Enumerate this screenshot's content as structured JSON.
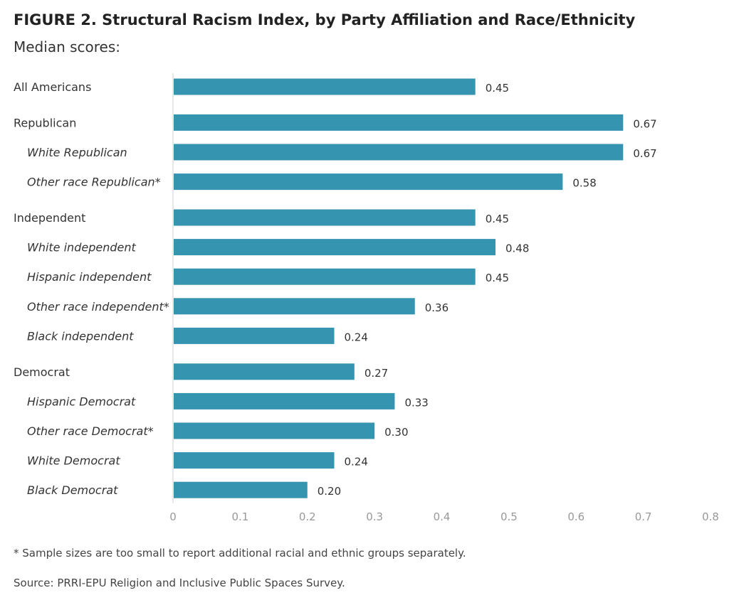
{
  "chart_data": {
    "type": "bar",
    "orientation": "horizontal",
    "title": "FIGURE 2. Structural Racism Index, by Party Affiliation and Race/Ethnicity",
    "subtitle": "Median scores:",
    "categories": [
      "All Americans",
      "Republican",
      "White Republican",
      "Other race Republican*",
      "Independent",
      "White independent",
      "Hispanic independent",
      "Other race independent*",
      "Black independent",
      "Democrat",
      "Hispanic Democrat",
      "Other race Democrat*",
      "White Democrat",
      "Black Democrat"
    ],
    "values": [
      0.45,
      0.67,
      0.67,
      0.58,
      0.45,
      0.48,
      0.45,
      0.36,
      0.24,
      0.27,
      0.33,
      0.3,
      0.24,
      0.2
    ],
    "value_labels": [
      "0.45",
      "0.67",
      "0.67",
      "0.58",
      "0.45",
      "0.48",
      "0.45",
      "0.36",
      "0.24",
      "0.27",
      "0.33",
      "0.30",
      "0.24",
      "0.20"
    ],
    "subgroup": [
      false,
      false,
      true,
      true,
      false,
      true,
      true,
      true,
      true,
      false,
      true,
      true,
      true,
      true
    ],
    "group_index": [
      0,
      1,
      1,
      1,
      2,
      2,
      2,
      2,
      2,
      3,
      3,
      3,
      3,
      3
    ],
    "xlim": [
      0,
      0.8
    ],
    "xticks": [
      0,
      0.1,
      0.2,
      0.3,
      0.4,
      0.5,
      0.6,
      0.7,
      0.8
    ],
    "xtick_labels": [
      "0",
      "0.1",
      "0.2",
      "0.3",
      "0.4",
      "0.5",
      "0.6",
      "0.7",
      "0.8"
    ],
    "xlabel": "",
    "ylabel": "",
    "grid": false,
    "bar_color": "#3594b0"
  },
  "footnote": "* Sample sizes are too small to report additional racial and ethnic groups separately.",
  "source": "Source: PRRI-EPU Religion and Inclusive Public Spaces Survey."
}
